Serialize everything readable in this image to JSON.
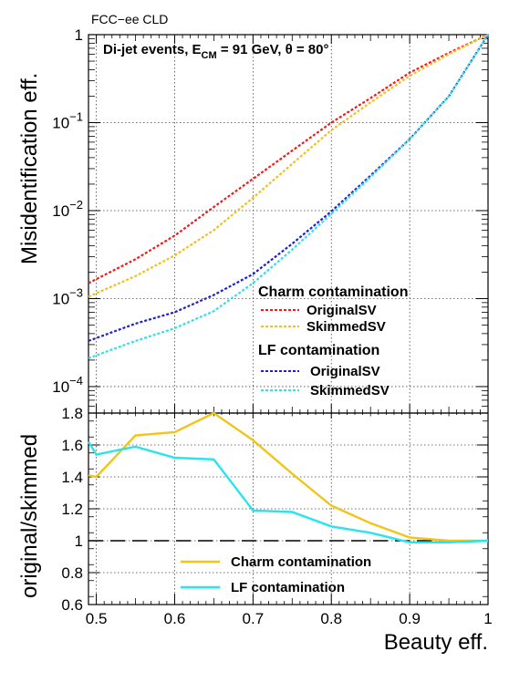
{
  "header": {
    "experiment": "FCC−ee CLD"
  },
  "annotation": {
    "prefix": "Di-jet events, E",
    "sub": "CM",
    "middle": " = 91 GeV, θ = 80°"
  },
  "x_axis": {
    "title": "Beauty eff.",
    "ticks": [
      "0.5",
      "0.6",
      "0.7",
      "0.8",
      "0.9",
      "1"
    ]
  },
  "top_panel": {
    "y_title": "Misidentification eff.",
    "y_ticks": [
      {
        "base": "10",
        "exp": "−4"
      },
      {
        "base": "10",
        "exp": "−3"
      },
      {
        "base": "10",
        "exp": "−2"
      },
      {
        "base": "10",
        "exp": "−1"
      },
      {
        "base": "1",
        "exp": ""
      }
    ]
  },
  "bottom_panel": {
    "y_title": "original/skimmed",
    "y_ticks": [
      "0.6",
      "0.8",
      "1",
      "1.2",
      "1.4",
      "1.6",
      "1.8"
    ]
  },
  "legend_top": {
    "charm_header": "Charm contamination",
    "lf_header": "LF contamination",
    "charm_original": "OriginalSV",
    "charm_skimmed": "SkimmedSV",
    "lf_original": "OriginalSV",
    "lf_skimmed": "SkimmedSV"
  },
  "legend_bottom": {
    "charm": "Charm contamination",
    "lf": "LF contamination"
  },
  "colors": {
    "charm_original": "#ee1c1c",
    "charm_skimmed": "#f0c020",
    "lf_original": "#2020cc",
    "lf_skimmed": "#30e0e8",
    "ratio_charm": "#f2c418",
    "ratio_lf": "#28e4ee"
  },
  "chart_data": [
    {
      "type": "line",
      "xlabel": "Beauty eff.",
      "ylabel": "Misidentification eff.",
      "xlim": [
        0.49,
        1.0
      ],
      "ylim": [
        5e-05,
        1.0
      ],
      "yscale": "log",
      "grid": true,
      "series": [
        {
          "name": "Charm contamination OriginalSV",
          "style": "dashed",
          "x": [
            0.49,
            0.55,
            0.6,
            0.65,
            0.7,
            0.75,
            0.8,
            0.85,
            0.9,
            0.95,
            1.0
          ],
          "y": [
            0.0015,
            0.0028,
            0.0052,
            0.011,
            0.023,
            0.048,
            0.1,
            0.19,
            0.37,
            0.62,
            1.0
          ]
        },
        {
          "name": "Charm contamination SkimmedSV",
          "style": "dashed",
          "x": [
            0.49,
            0.55,
            0.6,
            0.65,
            0.7,
            0.75,
            0.8,
            0.85,
            0.9,
            0.95,
            1.0
          ],
          "y": [
            0.00105,
            0.0018,
            0.0031,
            0.006,
            0.014,
            0.034,
            0.082,
            0.17,
            0.34,
            0.6,
            1.0
          ]
        },
        {
          "name": "LF contamination OriginalSV",
          "style": "dashed",
          "x": [
            0.49,
            0.55,
            0.6,
            0.65,
            0.7,
            0.75,
            0.8,
            0.85,
            0.9,
            0.95,
            1.0
          ],
          "y": [
            0.00033,
            0.00052,
            0.0007,
            0.0011,
            0.0019,
            0.0042,
            0.0098,
            0.025,
            0.065,
            0.2,
            1.0
          ]
        },
        {
          "name": "LF contamination SkimmedSV",
          "style": "dashed",
          "x": [
            0.49,
            0.55,
            0.6,
            0.65,
            0.7,
            0.75,
            0.8,
            0.85,
            0.9,
            0.95,
            1.0
          ],
          "y": [
            0.00021,
            0.00033,
            0.00046,
            0.00072,
            0.0015,
            0.0036,
            0.0092,
            0.024,
            0.065,
            0.2,
            1.0
          ]
        }
      ]
    },
    {
      "type": "line",
      "xlabel": "Beauty eff.",
      "ylabel": "original/skimmed",
      "xlim": [
        0.49,
        1.0
      ],
      "ylim": [
        0.6,
        1.8
      ],
      "grid": true,
      "reference_line": 1.0,
      "series": [
        {
          "name": "Charm contamination",
          "x": [
            0.49,
            0.5,
            0.55,
            0.6,
            0.65,
            0.7,
            0.75,
            0.8,
            0.85,
            0.9,
            0.95,
            1.0
          ],
          "y": [
            1.41,
            1.4,
            1.66,
            1.68,
            1.8,
            1.63,
            1.42,
            1.22,
            1.11,
            1.02,
            1.0,
            1.0
          ]
        },
        {
          "name": "LF contamination",
          "x": [
            0.49,
            0.5,
            0.55,
            0.6,
            0.65,
            0.7,
            0.75,
            0.8,
            0.85,
            0.9,
            0.95,
            1.0
          ],
          "y": [
            1.62,
            1.54,
            1.59,
            1.52,
            1.51,
            1.19,
            1.18,
            1.09,
            1.05,
            0.99,
            0.99,
            1.0
          ]
        }
      ]
    }
  ]
}
